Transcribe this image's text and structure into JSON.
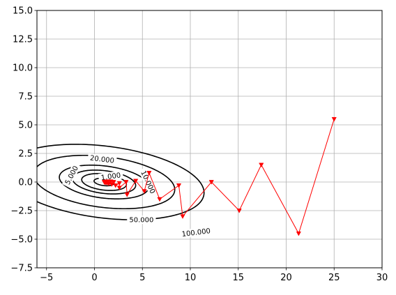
{
  "chart_data": {
    "type": "line",
    "title": "",
    "xlabel": "",
    "ylabel": "",
    "xlim": [
      -6,
      30
    ],
    "ylim": [
      -7.5,
      15
    ],
    "grid": true,
    "x_ticks": [
      -5,
      0,
      5,
      10,
      15,
      20,
      25,
      30
    ],
    "x_tick_labels": [
      "−5",
      "0",
      "5",
      "10",
      "15",
      "20",
      "25",
      "30"
    ],
    "y_ticks": [
      -7.5,
      -5.0,
      -2.5,
      0.0,
      2.5,
      5.0,
      7.5,
      10.0,
      12.5,
      15.0
    ],
    "y_tick_labels": [
      "−7.5",
      "−5.0",
      "−2.5",
      "0.0",
      "2.5",
      "5.0",
      "7.5",
      "10.0",
      "12.5",
      "15.0"
    ],
    "contours": {
      "color": "#000000",
      "center": [
        1.0,
        0.0
      ],
      "quadratic_form": {
        "a": 1,
        "b": 1.8,
        "c": 10
      },
      "levels": [
        1,
        5,
        10,
        20,
        50,
        100
      ],
      "labels": [
        {
          "text": "1.000",
          "x": 1.7,
          "y": 0.5,
          "angle": -8
        },
        {
          "text": "5.000",
          "x": -2.4,
          "y": 0.6,
          "angle": -62
        },
        {
          "text": "10.000",
          "x": 5.6,
          "y": 0.0,
          "angle": 65
        },
        {
          "text": "20.000",
          "x": 0.8,
          "y": 2.0,
          "angle": 7
        },
        {
          "text": "50.000",
          "x": 4.9,
          "y": -3.3,
          "angle": 0
        },
        {
          "text": "100.000",
          "x": 10.6,
          "y": -4.4,
          "angle": -7
        }
      ]
    },
    "series": [
      {
        "color": "#ff0000",
        "marker": "triangle-down",
        "x": [
          25.0,
          21.3,
          17.4,
          15.1,
          12.2,
          9.2,
          8.8,
          6.8,
          5.7,
          5.2,
          4.3,
          3.4,
          3.3,
          2.6,
          2.6,
          2.2,
          2.0,
          1.8,
          1.7,
          1.5,
          1.4,
          1.3,
          1.2,
          1.15,
          1.1,
          1.05,
          1.02
        ],
        "y": [
          5.5,
          -4.5,
          1.5,
          -2.5,
          0.0,
          -3.0,
          -0.3,
          -1.5,
          0.8,
          -0.8,
          0.1,
          -1.1,
          0.0,
          -0.5,
          -0.1,
          -0.3,
          0.0,
          -0.2,
          0.05,
          -0.15,
          0.05,
          -0.1,
          0.03,
          -0.06,
          0.02,
          -0.03,
          0.0
        ]
      }
    ]
  }
}
